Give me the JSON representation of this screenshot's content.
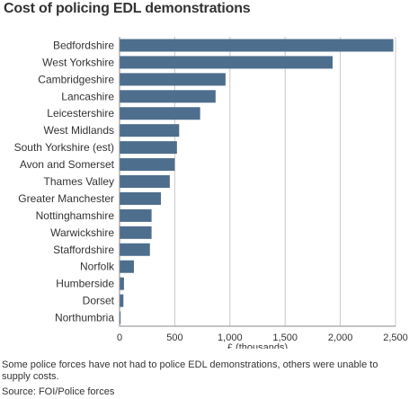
{
  "title": "Cost of policing EDL demonstrations",
  "footnote": "Some police forces have not had to police EDL demonstrations, others were unable to supply costs.",
  "source": "Source: FOI/Police forces",
  "colors": {
    "bar": "#4e6e8e",
    "grid": "#c8c8c8",
    "axis": "#888888",
    "text": "#333333"
  },
  "chart_data": {
    "type": "bar",
    "orientation": "horizontal",
    "title": "Cost of policing EDL demonstrations",
    "xlabel": "£ (thousands)",
    "ylabel": "",
    "xlim": [
      0,
      2500
    ],
    "xticks": [
      0,
      500,
      1000,
      1500,
      2000,
      2500
    ],
    "xtick_labels": [
      "0",
      "500",
      "1,000",
      "1,500",
      "2,000",
      "2,500"
    ],
    "grid": true,
    "categories": [
      "Bedfordshire",
      "West Yorkshire",
      "Cambridgeshire",
      "Lancashire",
      "Leicestershire",
      "West Midlands",
      "South Yorkshire (est)",
      "Avon and Somerset",
      "Thames Valley",
      "Greater Manchester",
      "Nottinghamshire",
      "Warwickshire",
      "Staffordshire",
      "Norfolk",
      "Humberside",
      "Dorset",
      "Northumbria"
    ],
    "values": [
      2480,
      1930,
      960,
      870,
      730,
      540,
      520,
      500,
      455,
      375,
      290,
      290,
      275,
      130,
      40,
      35,
      10
    ]
  }
}
